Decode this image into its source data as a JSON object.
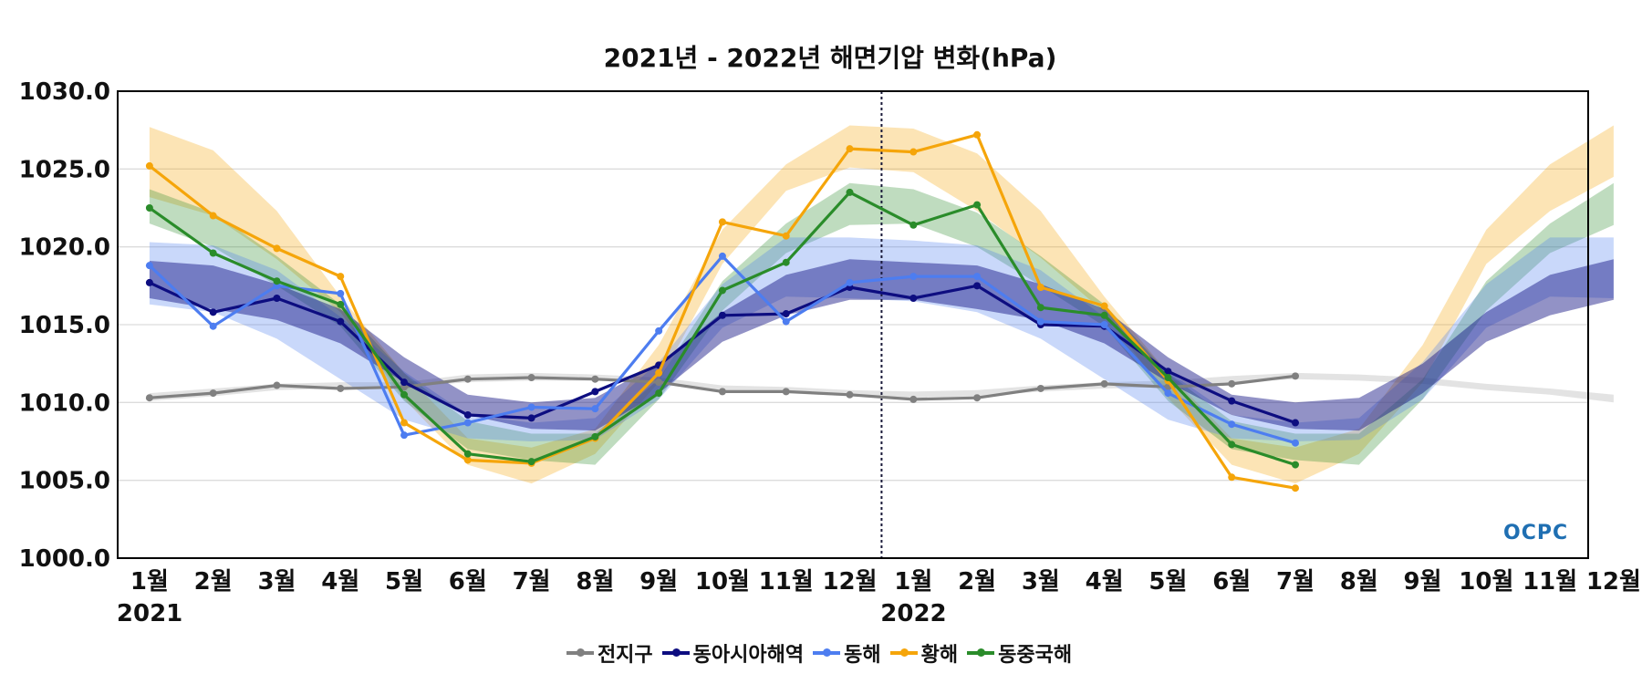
{
  "watermark": "OCPC",
  "chart_data": {
    "type": "line",
    "title": "2021년 - 2022년 해면기압 변화(hPa)",
    "xlabel": "",
    "ylabel": "",
    "ylim": [
      1000,
      1030
    ],
    "yticks": [
      "1000.0",
      "1005.0",
      "1010.0",
      "1015.0",
      "1020.0",
      "1025.0",
      "1030.0"
    ],
    "categories": [
      "1월",
      "2월",
      "3월",
      "4월",
      "5월",
      "6월",
      "7월",
      "8월",
      "9월",
      "10월",
      "11월",
      "12월",
      "1월",
      "2월",
      "3월",
      "4월",
      "5월",
      "6월",
      "7월",
      "8월",
      "9월",
      "10월",
      "11월",
      "12월"
    ],
    "year_labels": [
      {
        "index": 0,
        "label": "2021"
      },
      {
        "index": 12,
        "label": "2022"
      }
    ],
    "year_divider_after_index": 11.5,
    "grid": true,
    "legend_position": "bottom-center",
    "series": [
      {
        "name": "전지구",
        "color": "#808080",
        "values": [
          1010.3,
          1010.6,
          1011.1,
          1010.9,
          1011.0,
          1011.5,
          1011.6,
          1011.5,
          1011.3,
          1010.7,
          1010.7,
          1010.5,
          1010.2,
          1010.3,
          1010.9,
          1011.2,
          1011.0,
          1011.2,
          1011.7,
          null,
          null,
          null,
          null,
          null
        ],
        "band_lower": [
          1010.1,
          1010.4,
          1010.8,
          1010.9,
          1011.0,
          1011.3,
          1011.4,
          1011.4,
          1011.2,
          1010.8,
          1010.6,
          1010.4,
          1010.3,
          1010.4,
          1010.7,
          1010.9,
          1011.0,
          1011.3,
          1011.5,
          1011.4,
          1011.2,
          1010.8,
          1010.5,
          1010.0
        ],
        "band_upper": [
          1010.6,
          1010.9,
          1011.2,
          1011.3,
          1011.3,
          1011.8,
          1011.9,
          1011.8,
          1011.6,
          1011.1,
          1011.0,
          1010.8,
          1010.7,
          1010.8,
          1011.1,
          1011.3,
          1011.4,
          1011.7,
          1011.9,
          1011.8,
          1011.6,
          1011.2,
          1010.9,
          1010.5
        ]
      },
      {
        "name": "동아시아해역",
        "color": "#0d0d80",
        "values": [
          1017.7,
          1015.8,
          1016.7,
          1015.2,
          1011.3,
          1009.2,
          1009.0,
          1010.7,
          1012.4,
          1015.6,
          1015.7,
          1017.4,
          1016.7,
          1017.5,
          1015.0,
          1014.9,
          1012.0,
          1010.1,
          1008.7,
          null,
          null,
          null,
          null,
          null
        ],
        "band_lower": [
          1016.7,
          1016.0,
          1015.3,
          1013.8,
          1011.3,
          1009.2,
          1008.3,
          1008.2,
          1010.6,
          1013.9,
          1015.6,
          1016.6,
          1016.6,
          1016.0,
          1015.3,
          1013.8,
          1011.3,
          1009.2,
          1008.3,
          1008.2,
          1010.6,
          1013.9,
          1015.6,
          1016.6
        ],
        "band_upper": [
          1019.1,
          1018.8,
          1017.6,
          1016.0,
          1012.9,
          1010.5,
          1010.0,
          1010.3,
          1012.5,
          1015.8,
          1018.2,
          1019.2,
          1019.0,
          1018.8,
          1017.6,
          1016.0,
          1012.9,
          1010.5,
          1010.0,
          1010.3,
          1012.5,
          1015.8,
          1018.2,
          1019.2
        ]
      },
      {
        "name": "동해",
        "color": "#4d7df0",
        "values": [
          1018.8,
          1014.9,
          1017.5,
          1017.0,
          1007.9,
          1008.7,
          1009.7,
          1009.6,
          1014.6,
          1019.4,
          1015.2,
          1017.7,
          1018.1,
          1018.1,
          1015.2,
          1015.0,
          1010.6,
          1008.6,
          1007.4,
          null,
          null,
          null,
          null,
          null
        ],
        "band_lower": [
          1016.3,
          1015.8,
          1014.1,
          1011.5,
          1008.9,
          1007.7,
          1007.5,
          1007.6,
          1010.2,
          1014.8,
          1016.8,
          1016.7,
          1016.5,
          1015.8,
          1014.1,
          1011.5,
          1008.9,
          1007.7,
          1007.5,
          1007.6,
          1010.2,
          1014.8,
          1016.8,
          1016.7
        ],
        "band_upper": [
          1020.3,
          1020.1,
          1018.5,
          1015.5,
          1012.0,
          1009.2,
          1008.7,
          1009.0,
          1012.6,
          1017.6,
          1020.6,
          1020.6,
          1020.4,
          1020.1,
          1018.5,
          1015.5,
          1012.0,
          1009.2,
          1008.7,
          1009.0,
          1012.6,
          1017.6,
          1020.6,
          1020.6
        ]
      },
      {
        "name": "황해",
        "color": "#f5a50a",
        "values": [
          1025.2,
          1022.0,
          1019.9,
          1018.1,
          1008.7,
          1006.3,
          1006.1,
          1007.7,
          1011.9,
          1021.6,
          1020.7,
          1026.3,
          1026.1,
          1027.2,
          1017.4,
          1016.2,
          1011.4,
          1005.2,
          1004.5,
          null,
          null,
          null,
          null,
          null
        ],
        "band_lower": [
          1023.2,
          1022.0,
          1019.2,
          1015.8,
          1010.2,
          1006.0,
          1004.8,
          1006.7,
          1011.3,
          1018.9,
          1023.6,
          1025.1,
          1024.8,
          1022.3,
          1019.3,
          1015.8,
          1010.3,
          1006.0,
          1004.8,
          1006.7,
          1011.3,
          1018.9,
          1022.3,
          1024.5
        ],
        "band_upper": [
          1027.7,
          1026.2,
          1022.3,
          1016.8,
          1011.9,
          1007.7,
          1007.1,
          1008.3,
          1013.7,
          1021.1,
          1025.3,
          1027.8,
          1027.6,
          1026.0,
          1022.3,
          1016.8,
          1011.9,
          1007.7,
          1007.1,
          1008.3,
          1013.7,
          1021.1,
          1025.3,
          1027.8
        ]
      },
      {
        "name": "동중국해",
        "color": "#2a8c2a",
        "values": [
          1022.5,
          1019.6,
          1017.8,
          1016.3,
          1010.5,
          1006.7,
          1006.2,
          1007.8,
          1010.6,
          1017.2,
          1019.0,
          1023.5,
          1021.4,
          1022.7,
          1016.1,
          1015.6,
          1011.6,
          1007.3,
          1006.0,
          null,
          null,
          null,
          null,
          null
        ],
        "band_lower": [
          1021.5,
          1020.0,
          1017.5,
          1014.9,
          1010.1,
          1007.0,
          1006.3,
          1006.0,
          1010.2,
          1015.9,
          1019.6,
          1021.4,
          1021.5,
          1020.0,
          1017.5,
          1014.9,
          1010.1,
          1007.0,
          1006.3,
          1006.0,
          1010.2,
          1015.9,
          1019.6,
          1021.4
        ],
        "band_upper": [
          1023.7,
          1022.2,
          1019.4,
          1016.3,
          1011.9,
          1008.8,
          1008.0,
          1008.0,
          1011.5,
          1017.8,
          1021.5,
          1024.1,
          1023.7,
          1022.2,
          1019.4,
          1016.3,
          1011.9,
          1008.8,
          1008.0,
          1008.0,
          1011.5,
          1017.8,
          1021.5,
          1024.1
        ]
      }
    ]
  }
}
